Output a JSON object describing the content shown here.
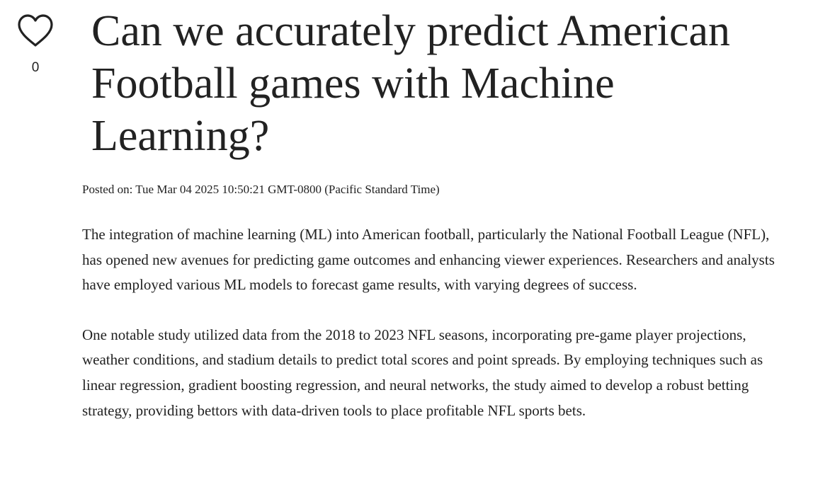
{
  "like": {
    "icon": "heart-outline-icon",
    "count": "0"
  },
  "article": {
    "title": "Can we accurately predict American Football games with Machine Learning?",
    "posted": "Posted on: Tue Mar 04 2025 10:50:21 GMT-0800 (Pacific Standard Time)",
    "paragraphs": [
      "The integration of machine learning (ML) into American football, particularly the National Football League (NFL), has opened new avenues for predicting game outcomes and enhancing viewer experiences. Researchers and analysts have employed various ML models to forecast game results, with varying degrees of success.",
      "One notable study utilized data from the 2018 to 2023 NFL seasons, incorporating pre-game player projections, weather conditions, and stadium details to predict total scores and point spreads. By employing techniques such as linear regression, gradient boosting regression, and neural networks, the study aimed to develop a robust betting strategy, providing bettors with data-driven tools to place profitable NFL sports bets."
    ]
  },
  "colors": {
    "text": "#222222",
    "background": "#ffffff"
  }
}
